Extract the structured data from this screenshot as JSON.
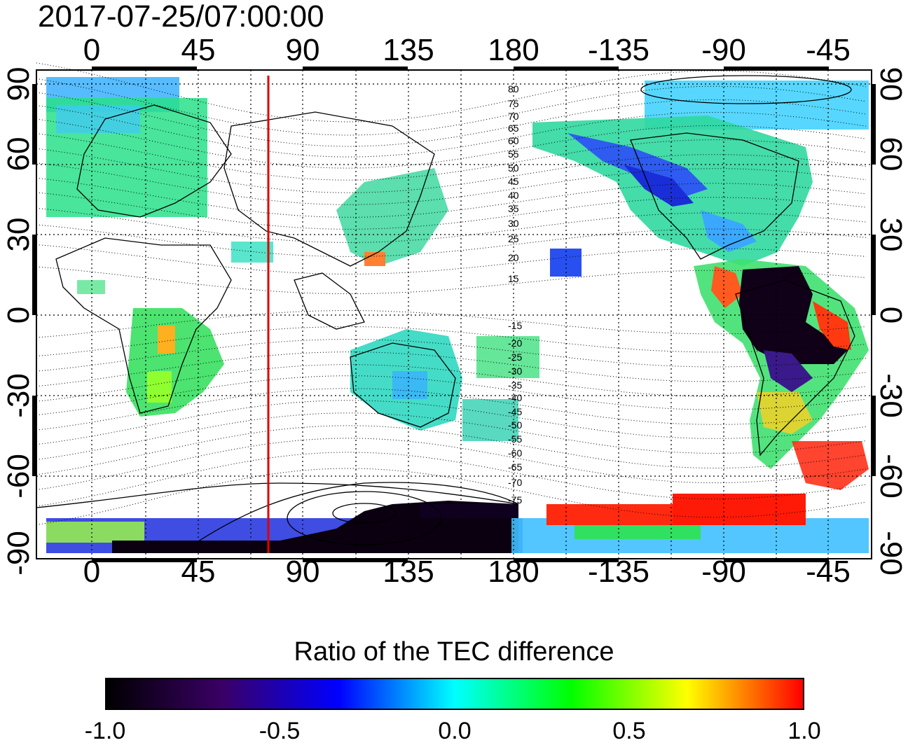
{
  "timestamp": "2017-07-25/07:00:00",
  "map": {
    "top_lon_ticks": [
      "0",
      "45",
      "90",
      "135",
      "180",
      "-135",
      "-90",
      "-45"
    ],
    "bottom_lon_ticks": [
      "0",
      "45",
      "90",
      "135",
      "180",
      "-135",
      "-90",
      "-45"
    ],
    "left_lat_ticks": [
      "90",
      "60",
      "30",
      "0",
      "-30",
      "-60",
      "-90"
    ],
    "right_lat_ticks": [
      "90",
      "60",
      "30",
      "0",
      "-30",
      "-60",
      "-90"
    ],
    "contour_labels": [
      "80",
      "75",
      "70",
      "65",
      "60",
      "55",
      "50",
      "45",
      "40",
      "35",
      "30",
      "25",
      "20",
      "15",
      "-15",
      "-20",
      "-25",
      "-30",
      "-35",
      "-40",
      "-45",
      "-50",
      "-55",
      "-60",
      "-65",
      "-70",
      "-75"
    ],
    "meridian_marker_lon": 75,
    "marker_color": "#e00000"
  },
  "colorbar": {
    "title": "Ratio of the TEC difference",
    "tick_labels": [
      "-1.0",
      "-0.5",
      "0.0",
      "0.5",
      "1.0"
    ],
    "range": [
      -1.0,
      1.0
    ],
    "colors": [
      "#000000",
      "#3a0066",
      "#0000ff",
      "#00ffff",
      "#00ff00",
      "#ffff00",
      "#ff0000"
    ]
  }
}
